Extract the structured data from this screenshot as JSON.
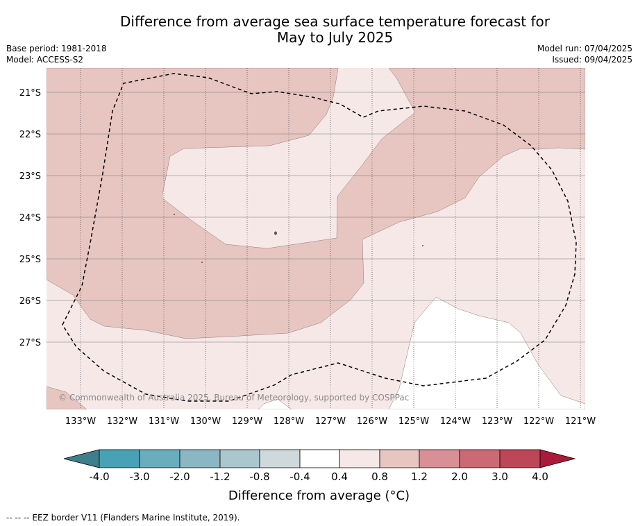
{
  "header": {
    "title_line1": "Difference from average sea surface temperature forecast for",
    "title_line2": "May to July 2025",
    "base_period": "Base period: 1981-2018",
    "model": "Model: ACCESS-S2",
    "model_run": "Model run: 07/04/2025",
    "issued": "Issued: 09/04/2025"
  },
  "map": {
    "lat_labels": [
      "21°S",
      "22°S",
      "23°S",
      "24°S",
      "25°S",
      "26°S",
      "27°S"
    ],
    "lon_labels": [
      "133°W",
      "132°W",
      "131°W",
      "130°W",
      "129°W",
      "128°W",
      "127°W",
      "126°W",
      "125°W",
      "124°W",
      "123°W",
      "122°W",
      "121°W"
    ],
    "copyright": "© Commonwealth of Australia 2025, Bureau of Meteorology, supported by COSPPac",
    "colors": {
      "band_0_4_0_8": "#f5e8e7",
      "band_0_8_1_2": "#e7c5c1",
      "band_neutral": "#ffffff"
    }
  },
  "colorbar": {
    "title": "Difference from average (°C)",
    "tick_labels": [
      "-4.0",
      "-3.0",
      "-2.0",
      "-1.2",
      "-0.8",
      "-0.4",
      "0.4",
      "0.8",
      "1.2",
      "2.0",
      "3.0",
      "4.0"
    ],
    "colors": [
      "#3e7f8c",
      "#48a1b4",
      "#6aadbd",
      "#8ab7c3",
      "#a9c7cc",
      "#cfd9db",
      "#ffffff",
      "#f5e8e7",
      "#e7c5c1",
      "#d88f96",
      "#cb6a74",
      "#be4757",
      "#ab1a3a"
    ]
  },
  "footer": {
    "legend_text": "--  --  -- EEZ border V11 (Flanders Marine Institute, 2019)."
  }
}
